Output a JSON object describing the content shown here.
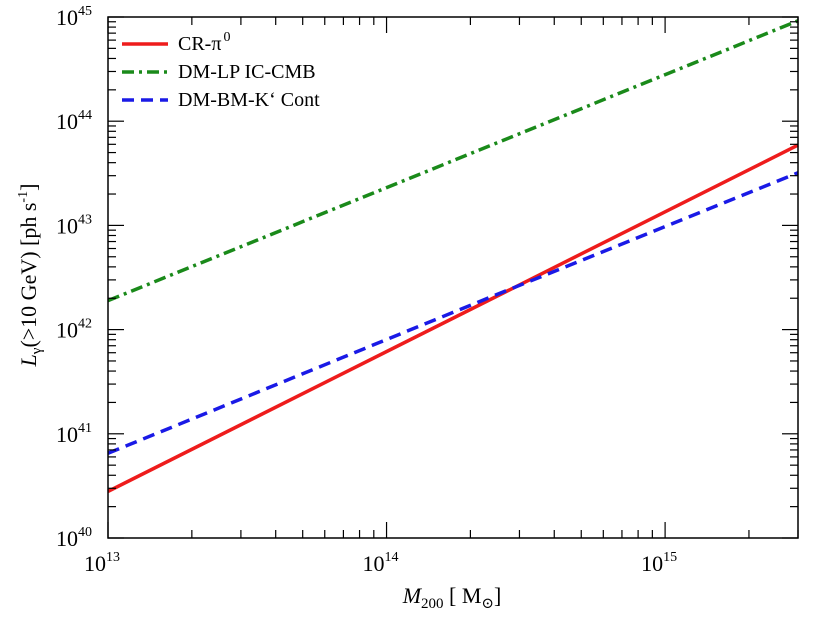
{
  "chart_data": {
    "type": "line",
    "x_scale": "log",
    "y_scale": "log",
    "xlim": [
      10000000000000.0,
      3000000000000000.0
    ],
    "ylim": [
      1e+40,
      1e+45
    ],
    "x_ticks": [
      {
        "base": "10",
        "exp": "13",
        "value": 10000000000000.0
      },
      {
        "base": "10",
        "exp": "14",
        "value": 100000000000000.0
      },
      {
        "base": "10",
        "exp": "15",
        "value": 1000000000000000.0
      }
    ],
    "y_ticks": [
      {
        "base": "10",
        "exp": "40",
        "value": 1e+40
      },
      {
        "base": "10",
        "exp": "41",
        "value": 1e+41
      },
      {
        "base": "10",
        "exp": "42",
        "value": 1e+42
      },
      {
        "base": "10",
        "exp": "43",
        "value": 1e+43
      },
      {
        "base": "10",
        "exp": "44",
        "value": 1e+44
      },
      {
        "base": "10",
        "exp": "45",
        "value": 1e+45
      }
    ],
    "xlabel": {
      "main": "M",
      "sub": "200",
      "unit_open": " [ M",
      "unit_symbol": "⊙",
      "unit_close": "]"
    },
    "ylabel": {
      "main": "L",
      "sub": "γ",
      "rest": "(>10 GeV) [ph s",
      "sup": "-1",
      "close": "]"
    },
    "legend_position": "top-left",
    "grid": false,
    "series": [
      {
        "name": "CR-π⁰",
        "name_base": "CR-π",
        "name_sup": "0",
        "color": "#ee1c1c",
        "dash": "solid",
        "x": [
          10000000000000.0,
          3000000000000000.0
        ],
        "y": [
          2.8e+40,
          5.9e+43
        ]
      },
      {
        "name": "DM-LP IC-CMB",
        "color": "#1a8a1a",
        "dash": "dashdot",
        "x": [
          10000000000000.0,
          3000000000000000.0
        ],
        "y": [
          1.9e+42,
          9.2e+44
        ]
      },
      {
        "name": "DM-BM-K‘ Cont",
        "color": "#1a1ae6",
        "dash": "dashed",
        "x": [
          10000000000000.0,
          220000000000000.0,
          3000000000000000.0
        ],
        "y": [
          6.5e+40,
          1.9e+42,
          3.2e+43
        ]
      }
    ]
  }
}
